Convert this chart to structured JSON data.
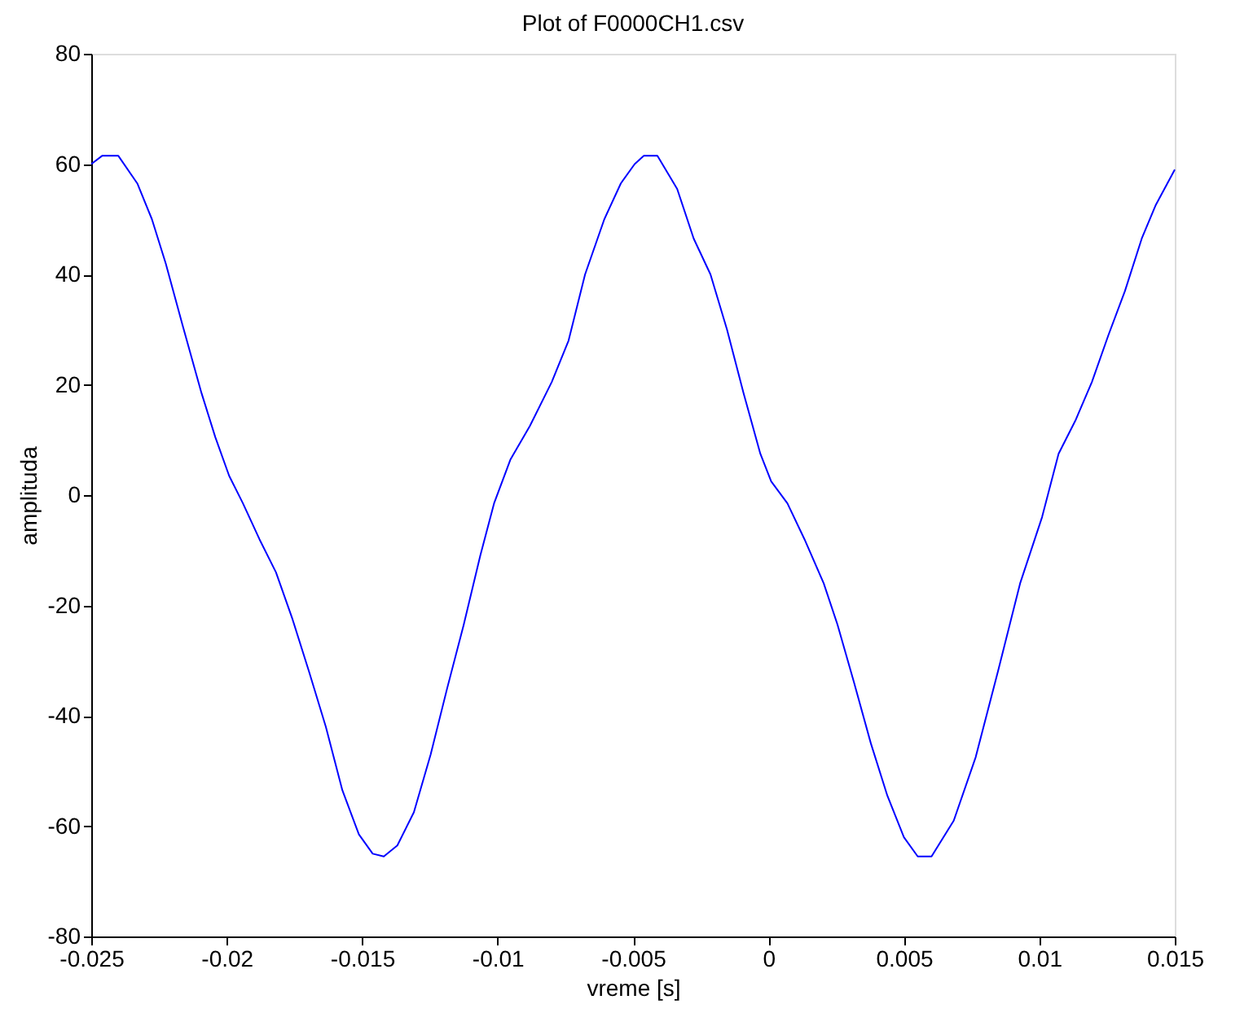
{
  "chart_data": {
    "type": "line",
    "title": "Plot of F0000CH1.csv",
    "xlabel": "vreme [s]",
    "ylabel": "amplituda",
    "xlim": [
      -0.025,
      0.015
    ],
    "xticks": [
      -0.025,
      -0.02,
      -0.015,
      -0.01,
      -0.005,
      0,
      0.005,
      0.01,
      0.015
    ],
    "ylim": [
      -80,
      80
    ],
    "yticks": [
      -80,
      -60,
      -40,
      -20,
      0,
      20,
      40,
      60,
      80
    ],
    "grid": false,
    "legend": false,
    "marker": "none",
    "line_style": "solid",
    "series": [
      {
        "color": "#0000ff",
        "x": [
          -0.025,
          -0.0246,
          -0.024,
          -0.0233,
          -0.02276,
          -0.02225,
          -0.02164,
          -0.02093,
          -0.02042,
          -0.01991,
          -0.0194,
          -0.01879,
          -0.01818,
          -0.01757,
          -0.01696,
          -0.01634,
          -0.01573,
          -0.01512,
          -0.01461,
          -0.0142,
          -0.0137,
          -0.01309,
          -0.01247,
          -0.01186,
          -0.01125,
          -0.01064,
          -0.01013,
          -0.00952,
          -0.00881,
          -0.008,
          -0.00738,
          -0.00677,
          -0.00606,
          -0.00545,
          -0.00494,
          -0.0046,
          -0.0041,
          -0.00337,
          -0.00276,
          -0.00214,
          -0.00153,
          -0.00092,
          -0.0003,
          0.0001,
          0.0007,
          0.00133,
          0.00204,
          0.00255,
          0.00316,
          0.00378,
          0.00439,
          0.005,
          0.00551,
          0.00602,
          0.00684,
          0.00765,
          0.00847,
          0.00929,
          0.0101,
          0.01071,
          0.01133,
          0.01194,
          0.01255,
          0.01316,
          0.01378,
          0.01429,
          0.015
        ],
        "values": [
          60,
          61.5,
          61.5,
          56.5,
          50,
          42,
          31,
          18.5,
          10.5,
          3.5,
          -1.5,
          -8,
          -14,
          -22.5,
          -32,
          -42,
          -53.5,
          -61.5,
          -65,
          -65.5,
          -63.5,
          -57.5,
          -47,
          -35,
          -23.5,
          -11,
          -1.5,
          6.5,
          12.5,
          20.5,
          28,
          40,
          50,
          56.5,
          60,
          61.5,
          61.5,
          55.5,
          46.5,
          40,
          30,
          18.5,
          7.5,
          2.5,
          -1.5,
          -8,
          -16,
          -23.5,
          -34,
          -45,
          -54.5,
          -62,
          -65.5,
          -65.5,
          -59,
          -47.5,
          -32,
          -16,
          -4,
          7.5,
          13.5,
          20.5,
          29,
          37,
          46.5,
          52.5,
          59
        ]
      }
    ]
  }
}
